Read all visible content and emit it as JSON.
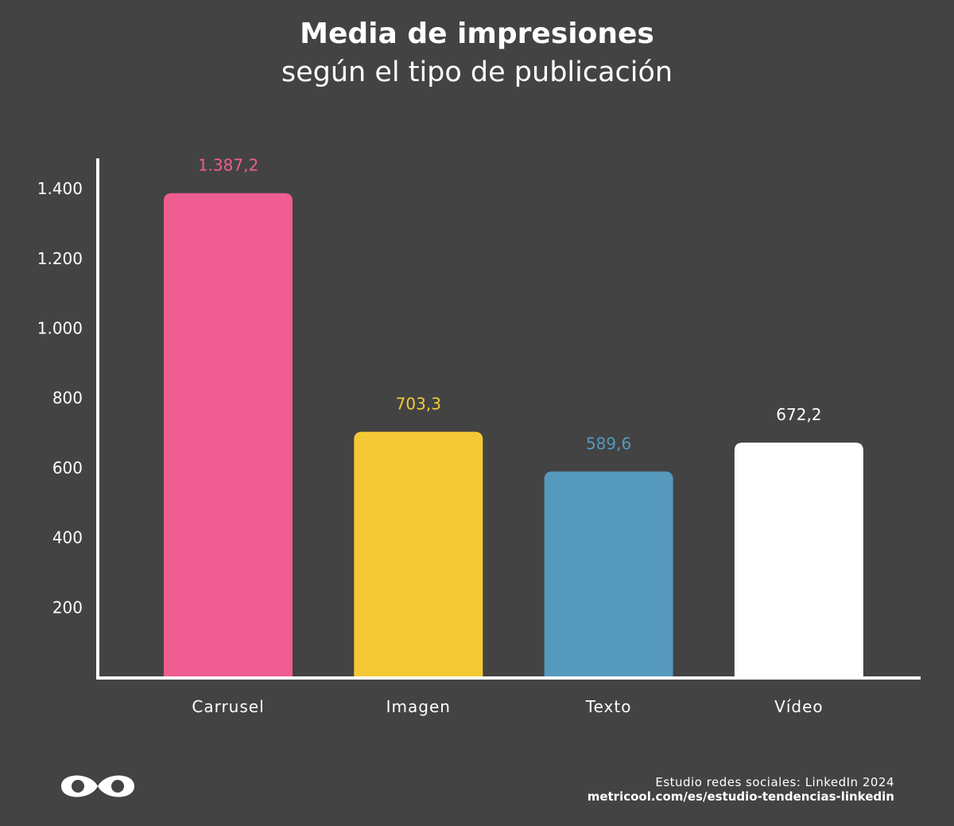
{
  "chart_data": {
    "type": "bar",
    "title": "Media de impresiones",
    "subtitle": "según el tipo de publicación",
    "categories": [
      "Carrusel",
      "Imagen",
      "Texto",
      "Vídeo"
    ],
    "values": [
      1387.2,
      703.3,
      589.6,
      672.2
    ],
    "value_labels": [
      "1.387,2",
      "703,3",
      "589,6",
      "672,2"
    ],
    "colors": [
      "#ef5d91",
      "#f5c935",
      "#5599bd",
      "#ffffff"
    ],
    "y_ticks": [
      200,
      400,
      600,
      800,
      1000,
      1200,
      1400
    ],
    "y_tick_labels": [
      "200",
      "400",
      "600",
      "800",
      "1.000",
      "1.200",
      "1.400"
    ],
    "ylim": [
      0,
      1480
    ],
    "grid": false,
    "legend": "none"
  },
  "footer": {
    "source_line": "Estudio redes sociales: LinkedIn 2024",
    "source_url": "metricool.com/es/estudio-tendencias-linkedin",
    "logo_icon": "metricool-logo-icon"
  }
}
